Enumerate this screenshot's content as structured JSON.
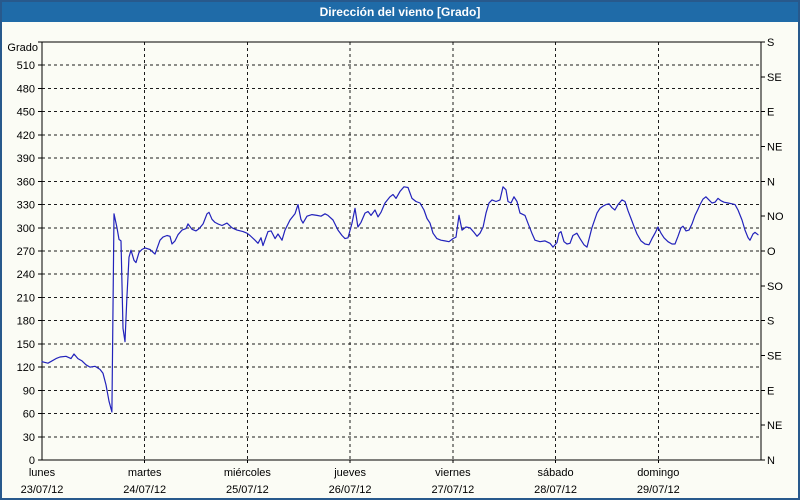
{
  "window": {
    "title": "Dirección del viento [Grado]"
  },
  "colors": {
    "titlebar_bg": "#1f6ba8",
    "titlebar_text": "#ffffff",
    "outer_border": "#28598c",
    "background": "#fbfcf5",
    "grid": "#1b1b1b",
    "line": "#2222bb"
  },
  "chart_data": {
    "type": "line",
    "title": "Dirección del viento [Grado]",
    "ylabel": "Grado",
    "xlabel": "",
    "grid": "dashed",
    "legend": "none",
    "ylim": [
      0,
      540
    ],
    "y_tick_step": 30,
    "y_left_ticks": [
      0,
      30,
      60,
      90,
      120,
      150,
      180,
      210,
      240,
      270,
      300,
      330,
      360,
      390,
      420,
      450,
      480,
      510
    ],
    "right_axis": {
      "unit_step": 45,
      "labels": [
        {
          "value": 0,
          "label": "N"
        },
        {
          "value": 45,
          "label": "NE"
        },
        {
          "value": 90,
          "label": "E"
        },
        {
          "value": 135,
          "label": "SE"
        },
        {
          "value": 180,
          "label": "S"
        },
        {
          "value": 225,
          "label": "SO"
        },
        {
          "value": 270,
          "label": "O"
        },
        {
          "value": 315,
          "label": "NO"
        },
        {
          "value": 360,
          "label": "N"
        },
        {
          "value": 405,
          "label": "NE"
        },
        {
          "value": 450,
          "label": "E"
        },
        {
          "value": 495,
          "label": "SE"
        },
        {
          "value": 540,
          "label": "S"
        }
      ]
    },
    "xlim_days": [
      0,
      7
    ],
    "x_day_labels": [
      {
        "name": "lunes",
        "date": "23/07/12"
      },
      {
        "name": "martes",
        "date": "24/07/12"
      },
      {
        "name": "miércoles",
        "date": "25/07/12"
      },
      {
        "name": "jueves",
        "date": "26/07/12"
      },
      {
        "name": "viernes",
        "date": "27/07/12"
      },
      {
        "name": "sábado",
        "date": "28/07/12"
      },
      {
        "name": "domingo",
        "date": "29/07/12"
      }
    ],
    "series": [
      {
        "name": "Dirección del viento",
        "color": "#2222bb",
        "points": [
          [
            0.0,
            127
          ],
          [
            0.058,
            125
          ],
          [
            0.136,
            131
          ],
          [
            0.175,
            133
          ],
          [
            0.234,
            134
          ],
          [
            0.282,
            131
          ],
          [
            0.312,
            137
          ],
          [
            0.35,
            131
          ],
          [
            0.389,
            128
          ],
          [
            0.428,
            123
          ],
          [
            0.467,
            120
          ],
          [
            0.516,
            121
          ],
          [
            0.565,
            117
          ],
          [
            0.594,
            112
          ],
          [
            0.623,
            97
          ],
          [
            0.652,
            76
          ],
          [
            0.681,
            62
          ],
          [
            0.701,
            318
          ],
          [
            0.73,
            300
          ],
          [
            0.75,
            285
          ],
          [
            0.769,
            283
          ],
          [
            0.789,
            170
          ],
          [
            0.808,
            153
          ],
          [
            0.827,
            210
          ],
          [
            0.847,
            262
          ],
          [
            0.866,
            271
          ],
          [
            0.896,
            258
          ],
          [
            0.915,
            255
          ],
          [
            0.944,
            268
          ],
          [
            0.973,
            272
          ],
          [
            1.003,
            274
          ],
          [
            1.051,
            272
          ],
          [
            1.1,
            266
          ],
          [
            1.149,
            284
          ],
          [
            1.178,
            288
          ],
          [
            1.217,
            290
          ],
          [
            1.246,
            289
          ],
          [
            1.266,
            279
          ],
          [
            1.295,
            283
          ],
          [
            1.324,
            291
          ],
          [
            1.363,
            297
          ],
          [
            1.402,
            299
          ],
          [
            1.421,
            305
          ],
          [
            1.46,
            298
          ],
          [
            1.499,
            296
          ],
          [
            1.529,
            299
          ],
          [
            1.568,
            305
          ],
          [
            1.606,
            318
          ],
          [
            1.626,
            320
          ],
          [
            1.655,
            311
          ],
          [
            1.684,
            307
          ],
          [
            1.713,
            305
          ],
          [
            1.752,
            303
          ],
          [
            1.801,
            306
          ],
          [
            1.85,
            300
          ],
          [
            1.898,
            297
          ],
          [
            1.957,
            295
          ],
          [
            1.996,
            293
          ],
          [
            2.025,
            290
          ],
          [
            2.074,
            284
          ],
          [
            2.103,
            280
          ],
          [
            2.132,
            287
          ],
          [
            2.152,
            277
          ],
          [
            2.2,
            295
          ],
          [
            2.23,
            296
          ],
          [
            2.269,
            286
          ],
          [
            2.298,
            292
          ],
          [
            2.337,
            284
          ],
          [
            2.366,
            297
          ],
          [
            2.414,
            310
          ],
          [
            2.463,
            318
          ],
          [
            2.492,
            330
          ],
          [
            2.521,
            311
          ],
          [
            2.541,
            306
          ],
          [
            2.58,
            315
          ],
          [
            2.629,
            317
          ],
          [
            2.677,
            316
          ],
          [
            2.716,
            315
          ],
          [
            2.755,
            318
          ],
          [
            2.784,
            316
          ],
          [
            2.833,
            310
          ],
          [
            2.882,
            297
          ],
          [
            2.921,
            290
          ],
          [
            2.95,
            286
          ],
          [
            2.979,
            287
          ],
          [
            3.018,
            306
          ],
          [
            3.047,
            325
          ],
          [
            3.076,
            301
          ],
          [
            3.106,
            307
          ],
          [
            3.145,
            319
          ],
          [
            3.174,
            321
          ],
          [
            3.203,
            316
          ],
          [
            3.242,
            323
          ],
          [
            3.271,
            314
          ],
          [
            3.3,
            320
          ],
          [
            3.339,
            332
          ],
          [
            3.388,
            340
          ],
          [
            3.417,
            343
          ],
          [
            3.446,
            338
          ],
          [
            3.485,
            347
          ],
          [
            3.524,
            353
          ],
          [
            3.563,
            352
          ],
          [
            3.602,
            338
          ],
          [
            3.641,
            334
          ],
          [
            3.68,
            332
          ],
          [
            3.719,
            323
          ],
          [
            3.748,
            312
          ],
          [
            3.777,
            306
          ],
          [
            3.807,
            293
          ],
          [
            3.845,
            286
          ],
          [
            3.884,
            284
          ],
          [
            3.923,
            283
          ],
          [
            3.962,
            282
          ],
          [
            4.001,
            286
          ],
          [
            4.031,
            288
          ],
          [
            4.06,
            316
          ],
          [
            4.089,
            297
          ],
          [
            4.128,
            301
          ],
          [
            4.167,
            300
          ],
          [
            4.206,
            294
          ],
          [
            4.235,
            289
          ],
          [
            4.264,
            293
          ],
          [
            4.294,
            301
          ],
          [
            4.323,
            319
          ],
          [
            4.352,
            332
          ],
          [
            4.381,
            336
          ],
          [
            4.42,
            334
          ],
          [
            4.459,
            336
          ],
          [
            4.488,
            353
          ],
          [
            4.517,
            349
          ],
          [
            4.537,
            334
          ],
          [
            4.566,
            332
          ],
          [
            4.595,
            340
          ],
          [
            4.624,
            334
          ],
          [
            4.654,
            319
          ],
          [
            4.702,
            316
          ],
          [
            4.731,
            306
          ],
          [
            4.77,
            293
          ],
          [
            4.8,
            284
          ],
          [
            4.848,
            282
          ],
          [
            4.897,
            283
          ],
          [
            4.946,
            280
          ],
          [
            4.975,
            275
          ],
          [
            5.014,
            281
          ],
          [
            5.033,
            293
          ],
          [
            5.053,
            295
          ],
          [
            5.082,
            282
          ],
          [
            5.111,
            279
          ],
          [
            5.14,
            280
          ],
          [
            5.169,
            290
          ],
          [
            5.208,
            293
          ],
          [
            5.238,
            286
          ],
          [
            5.277,
            278
          ],
          [
            5.306,
            275
          ],
          [
            5.354,
            300
          ],
          [
            5.403,
            319
          ],
          [
            5.432,
            325
          ],
          [
            5.462,
            328
          ],
          [
            5.491,
            330
          ],
          [
            5.52,
            331
          ],
          [
            5.549,
            326
          ],
          [
            5.578,
            323
          ],
          [
            5.608,
            330
          ],
          [
            5.647,
            336
          ],
          [
            5.676,
            334
          ],
          [
            5.705,
            322
          ],
          [
            5.734,
            312
          ],
          [
            5.763,
            302
          ],
          [
            5.793,
            292
          ],
          [
            5.832,
            283
          ],
          [
            5.871,
            279
          ],
          [
            5.91,
            278
          ],
          [
            5.939,
            286
          ],
          [
            5.968,
            293
          ],
          [
            5.997,
            301
          ],
          [
            6.026,
            293
          ],
          [
            6.056,
            287
          ],
          [
            6.095,
            282
          ],
          [
            6.134,
            279
          ],
          [
            6.163,
            279
          ],
          [
            6.192,
            289
          ],
          [
            6.221,
            300
          ],
          [
            6.241,
            302
          ],
          [
            6.27,
            296
          ],
          [
            6.299,
            297
          ],
          [
            6.328,
            305
          ],
          [
            6.357,
            316
          ],
          [
            6.387,
            324
          ],
          [
            6.406,
            330
          ],
          [
            6.435,
            337
          ],
          [
            6.464,
            340
          ],
          [
            6.494,
            336
          ],
          [
            6.523,
            332
          ],
          [
            6.552,
            333
          ],
          [
            6.581,
            338
          ],
          [
            6.61,
            335
          ],
          [
            6.64,
            333
          ],
          [
            6.679,
            332
          ],
          [
            6.718,
            331
          ],
          [
            6.747,
            330
          ],
          [
            6.776,
            323
          ],
          [
            6.815,
            310
          ],
          [
            6.844,
            297
          ],
          [
            6.874,
            287
          ],
          [
            6.893,
            284
          ],
          [
            6.922,
            292
          ],
          [
            6.942,
            294
          ],
          [
            6.971,
            291
          ]
        ]
      }
    ]
  }
}
